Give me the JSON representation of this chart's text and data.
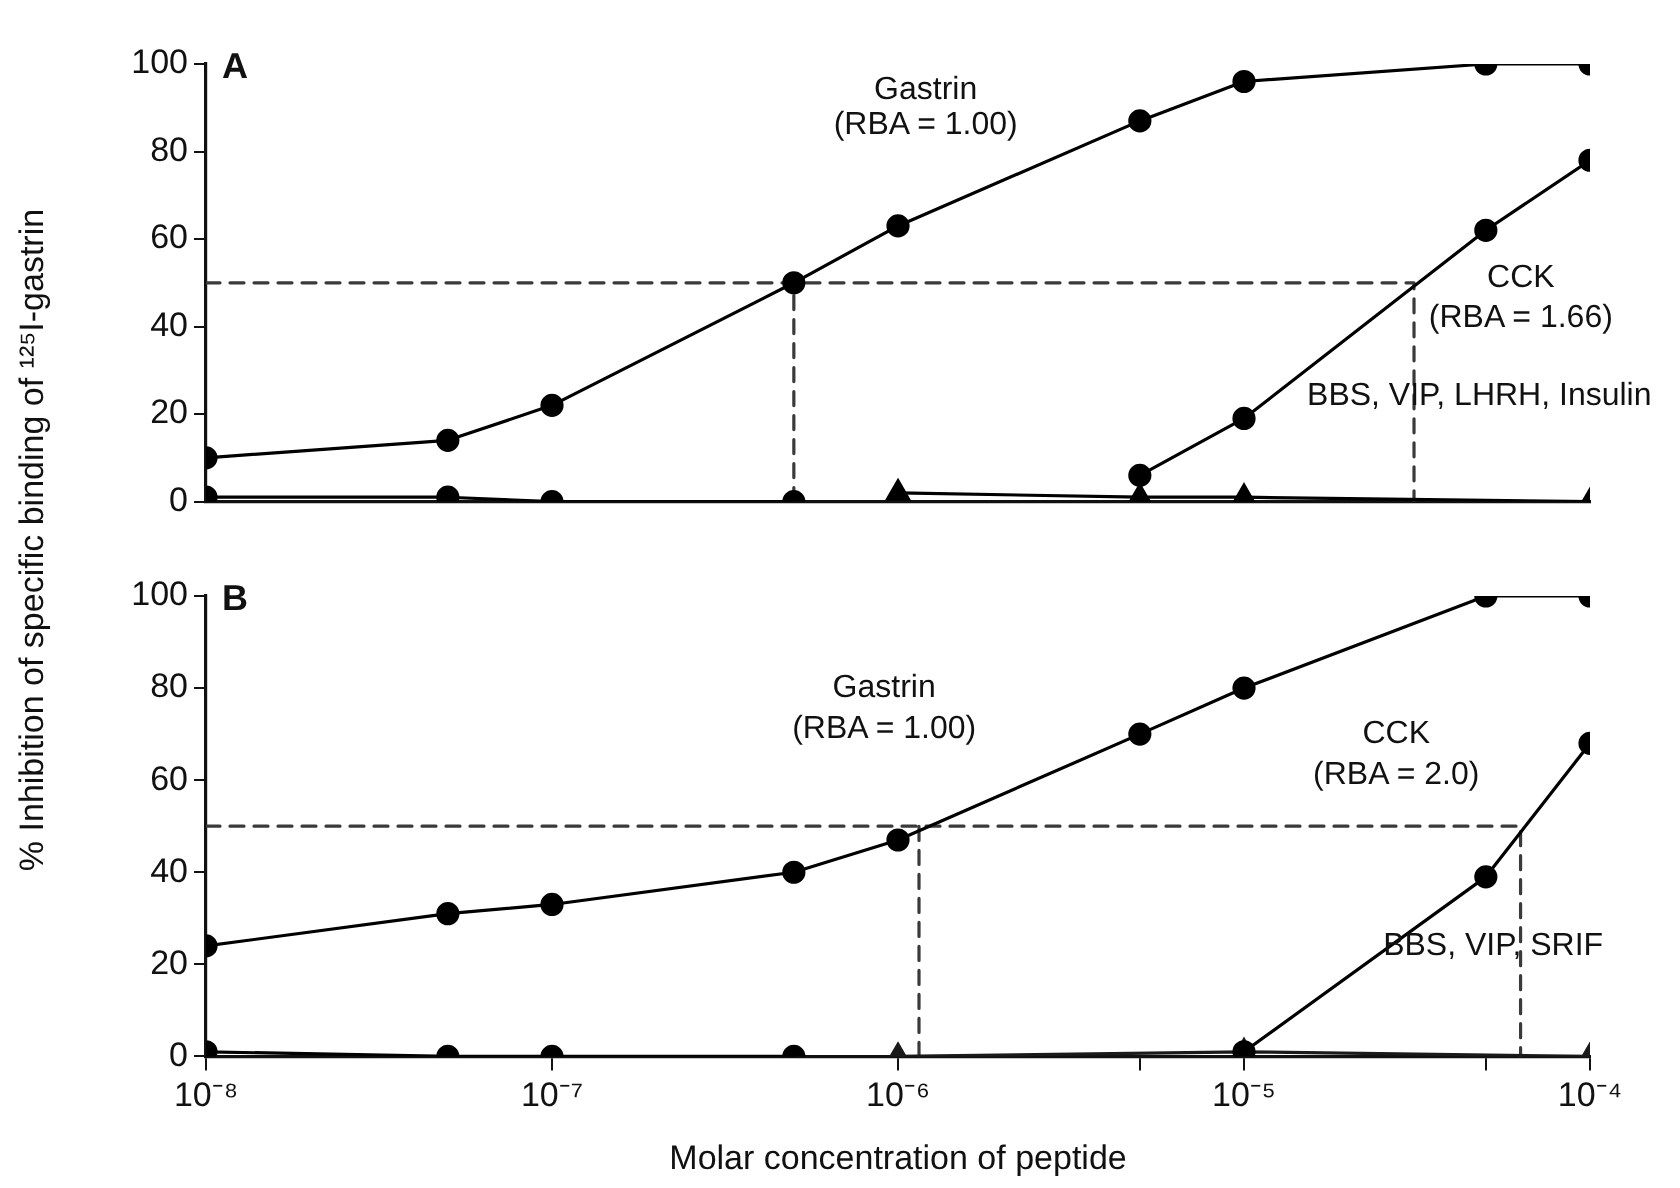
{
  "chart_data": [
    {
      "type": "line",
      "title": "A",
      "ylabel": "% Inhibition of specific binding of ¹²⁵I-gastrin",
      "x": [
        1e-08,
        5e-08,
        1e-07,
        5e-07,
        1e-06,
        5e-06,
        1e-05,
        5e-05,
        0.0001
      ],
      "series": [
        {
          "color": "#000000",
          "marker": "circle",
          "values": [
            10,
            14,
            22,
            50,
            63,
            87,
            96,
            100,
            100
          ]
        },
        {
          "color": "#000000",
          "marker": "circle",
          "values": [
            1,
            1,
            0,
            0,
            null,
            6,
            19,
            62,
            78
          ]
        },
        {
          "color": "#000000",
          "marker": "triangle",
          "x": [
            1e-06,
            5e-06,
            1e-05,
            0.0001
          ],
          "values": [
            2,
            1,
            1,
            0
          ]
        },
        {
          "color": "#3a3a3a",
          "marker": "none",
          "line_style": "dashed",
          "x": [
            1e-08,
            3.1e-05,
            3.1e-05,
            null,
            5e-07,
            5e-07
          ],
          "values": [
            50,
            50,
            0,
            null,
            0,
            50
          ]
        }
      ],
      "annotations": [
        "Gastrin",
        "(RBA = 1.00)",
        "CCK",
        "(RBA = 1.66)",
        "BBS, VIP, LHRH, Insulin"
      ],
      "log": "x",
      "xlim": [
        1e-08,
        0.0001
      ],
      "ylim": [
        0,
        100
      ],
      "yticks": [
        0,
        20,
        40,
        60,
        80,
        100
      ],
      "grid": false,
      "legend": false,
      "tick_labels": "y"
    },
    {
      "type": "line",
      "title": "B",
      "xlabel": "Molar concentration of peptide",
      "x": [
        1e-08,
        5e-08,
        1e-07,
        5e-07,
        1e-06,
        5e-06,
        1e-05,
        5e-05,
        0.0001
      ],
      "series": [
        {
          "color": "#000000",
          "marker": "circle",
          "values": [
            24,
            31,
            33,
            40,
            47,
            70,
            80,
            100,
            100
          ]
        },
        {
          "color": "#000000",
          "marker": "circle",
          "values": [
            1,
            0,
            0,
            0,
            null,
            null,
            1,
            39,
            68
          ]
        },
        {
          "color": "#1a1a1a",
          "marker": "triangle",
          "x": [
            1e-06,
            1e-05,
            0.0001
          ],
          "values": [
            0,
            1,
            0
          ]
        },
        {
          "color": "#3a3a3a",
          "marker": "none",
          "line_style": "dashed",
          "x": [
            1e-08,
            6.3e-05,
            6.3e-05,
            null,
            1.15e-06,
            1.15e-06
          ],
          "values": [
            50,
            50,
            0,
            null,
            0,
            50
          ]
        }
      ],
      "annotations": [
        "Gastrin",
        "(RBA = 1.00)",
        "CCK",
        "(RBA = 2.0)",
        "BBS, VIP, SRIF"
      ],
      "log": "x",
      "xlim": [
        1e-08,
        0.0001
      ],
      "xticks": [
        {
          "value": 1e-08,
          "label": "10⁻⁸"
        },
        {
          "value": 1e-07,
          "label": "10⁻⁷"
        },
        {
          "value": 1e-06,
          "label": "10⁻⁶"
        },
        {
          "value": 5e-06,
          "label": null
        },
        {
          "value": 1e-05,
          "label": "10⁻⁵"
        },
        {
          "value": 5e-05,
          "label": null
        },
        {
          "value": 0.0001,
          "label": "10⁻⁴"
        }
      ],
      "ylim": [
        0,
        100
      ],
      "yticks": [
        0,
        20,
        40,
        60,
        80,
        100
      ],
      "grid": false,
      "legend": false
    }
  ]
}
